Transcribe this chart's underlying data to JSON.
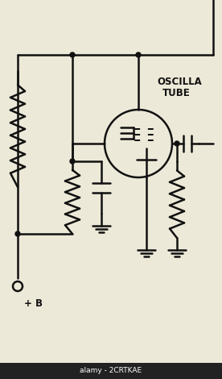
{
  "bg_color": "#ede9d8",
  "line_color": "#111111",
  "lw": 1.8,
  "label_oscilla": "OSCILLA",
  "label_tube": "TUBE",
  "label_plus_b": "+ B",
  "label_fontsize": 8.5,
  "watermark_bottom": "alamy - 2CRTKAE",
  "wm_bg": "#222222",
  "wm_color": "#ffffff",
  "wm_fontsize": 6.5
}
